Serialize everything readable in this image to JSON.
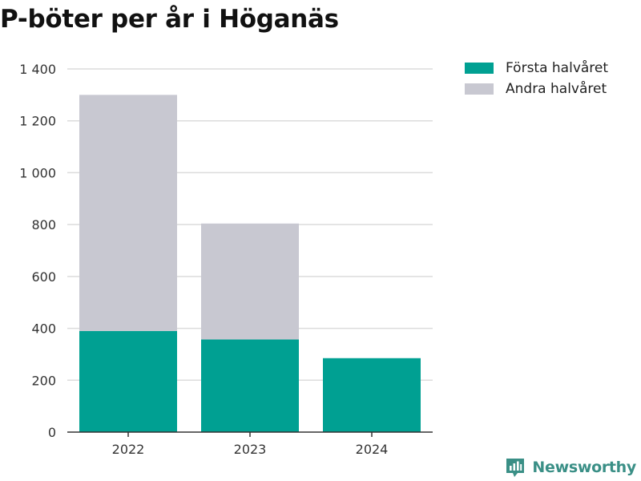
{
  "chart_data": {
    "type": "bar",
    "stacked": true,
    "title": "P-böter per år i Höganäs",
    "xlabel": "",
    "ylabel": "",
    "categories": [
      "2022",
      "2023",
      "2024"
    ],
    "series": [
      {
        "name": "Första halvåret",
        "values": [
          390,
          357,
          285
        ],
        "color": "#00a092"
      },
      {
        "name": "Andra halvåret",
        "values": [
          910,
          447,
          null
        ],
        "color": "#c8c8d1"
      }
    ],
    "ylim": [
      0,
      1400
    ],
    "yticks": [
      0,
      200,
      400,
      600,
      800,
      1000,
      1200,
      1400
    ],
    "ytick_labels": [
      "0",
      "200",
      "400",
      "600",
      "800",
      "1 000",
      "1 200",
      "1 400"
    ],
    "grid": true,
    "legend_position": "top-right"
  },
  "brand": {
    "name": "Newsworthy",
    "icon": "newsworthy-logo-icon",
    "color": "#3a8f86"
  }
}
